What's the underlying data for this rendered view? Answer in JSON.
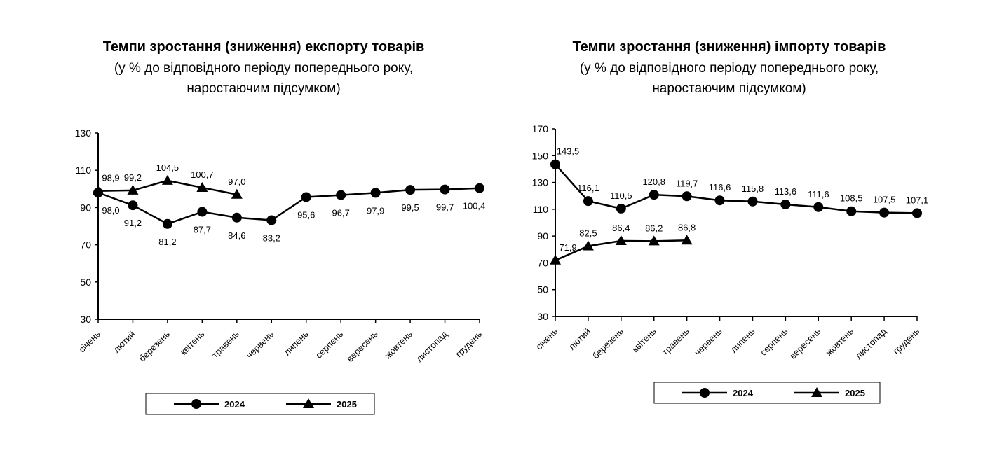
{
  "chart_data": [
    {
      "type": "line",
      "title": "Темпи зростання (зниження) експорту товарів",
      "subtitle": [
        "(у % до відповідного періоду попереднього року,",
        "наростаючим підсумком)"
      ],
      "categories": [
        "січень",
        "лютий",
        "березень",
        "квітень",
        "травень",
        "червень",
        "липень",
        "серпень",
        "вересень",
        "жовтень",
        "листопад",
        "грудень"
      ],
      "series": [
        {
          "name": "2024",
          "color": "#000000",
          "marker": "circle",
          "values": [
            98.0,
            91.2,
            81.2,
            87.7,
            84.6,
            83.2,
            95.6,
            96.7,
            97.9,
            99.5,
            99.7,
            100.4
          ],
          "value_labels": [
            "98,0",
            "91,2",
            "81,2",
            "87,7",
            "84,6",
            "83,2",
            "95,6",
            "96,7",
            "97,9",
            "99,5",
            "99,7",
            "100,4"
          ]
        },
        {
          "name": "2025",
          "color": "#000000",
          "marker": "triangle",
          "values": [
            98.9,
            99.2,
            104.5,
            100.7,
            97.0,
            null,
            null,
            null,
            null,
            null,
            null,
            null
          ],
          "value_labels": [
            "98,9",
            "99,2",
            "104,5",
            "100,7",
            "97,0",
            null,
            null,
            null,
            null,
            null,
            null,
            null
          ]
        }
      ],
      "ylim": [
        30,
        130
      ],
      "yticks": [
        30,
        50,
        70,
        90,
        110,
        130
      ],
      "grid": false,
      "legend": "bottom"
    },
    {
      "type": "line",
      "title": "Темпи зростання (зниження) імпорту товарів",
      "subtitle": [
        "(у % до відповідного періоду попереднього року,",
        "наростаючим підсумком)"
      ],
      "categories": [
        "січень",
        "лютий",
        "березень",
        "квітень",
        "травень",
        "червень",
        "липень",
        "серпень",
        "вересень",
        "жовтень",
        "листопад",
        "грудень"
      ],
      "series": [
        {
          "name": "2024",
          "color": "#000000",
          "marker": "circle",
          "values": [
            143.5,
            116.1,
            110.5,
            120.8,
            119.7,
            116.6,
            115.8,
            113.6,
            111.6,
            108.5,
            107.5,
            107.1
          ],
          "value_labels": [
            "143,5",
            "116,1",
            "110,5",
            "120,8",
            "119,7",
            "116,6",
            "115,8",
            "113,6",
            "111,6",
            "108,5",
            "107,5",
            "107,1"
          ]
        },
        {
          "name": "2025",
          "color": "#000000",
          "marker": "triangle",
          "values": [
            71.9,
            82.5,
            86.4,
            86.2,
            86.8,
            null,
            null,
            null,
            null,
            null,
            null,
            null
          ],
          "value_labels": [
            "71,9",
            "82,5",
            "86,4",
            "86,2",
            "86,8",
            null,
            null,
            null,
            null,
            null,
            null,
            null
          ]
        }
      ],
      "ylim": [
        30,
        170
      ],
      "yticks": [
        30,
        50,
        70,
        90,
        110,
        130,
        150,
        170
      ],
      "grid": false,
      "legend": "bottom"
    }
  ]
}
